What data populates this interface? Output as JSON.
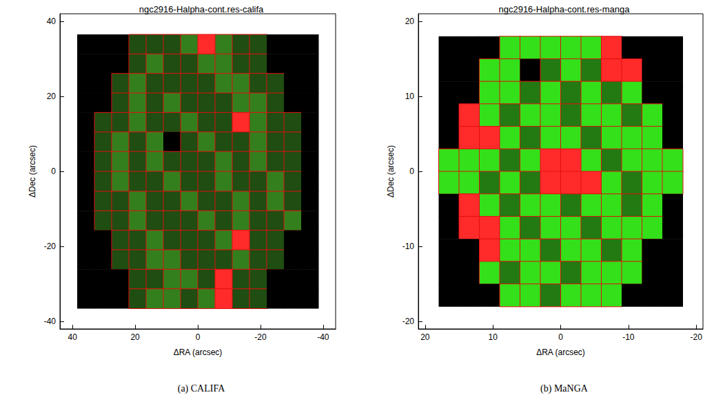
{
  "chart_data": [
    {
      "type": "heatmap",
      "title": "ngc2916-Halpha-cont.res-califa",
      "caption": "(a) CALIFA",
      "x_label": "ΔRA (arcsec)",
      "y_label": "ΔDec (arcsec)",
      "xlim": [
        44,
        -44
      ],
      "ylim": [
        -42,
        42
      ],
      "xticks": [
        40,
        20,
        0,
        -20,
        -40
      ],
      "yticks": [
        -40,
        -20,
        0,
        20,
        40
      ],
      "colors": [
        "#000000",
        "#1f4d12",
        "#347f1d",
        "#ff2a2a"
      ],
      "x_edges": [
        38.5,
        33,
        27.5,
        22,
        16.5,
        11,
        5.5,
        0,
        -5.5,
        -11,
        -16.5,
        -22,
        -27.5,
        -33,
        -38.5
      ],
      "y_edges": [
        36.5,
        31.3,
        26.1,
        20.9,
        15.7,
        10.5,
        5.3,
        0,
        -5.3,
        -10.5,
        -15.7,
        -20.9,
        -26.1,
        -31.3,
        -36.5
      ],
      "cells": [
        [
          0,
          0,
          0,
          1,
          1,
          1,
          2,
          3,
          2,
          1,
          1,
          0,
          0,
          0
        ],
        [
          0,
          0,
          0,
          1,
          2,
          1,
          1,
          2,
          2,
          1,
          1,
          0,
          0,
          0
        ],
        [
          0,
          0,
          1,
          2,
          1,
          1,
          1,
          1,
          2,
          2,
          1,
          1,
          0,
          0
        ],
        [
          0,
          0,
          1,
          2,
          1,
          2,
          1,
          1,
          1,
          2,
          2,
          1,
          0,
          0
        ],
        [
          0,
          1,
          1,
          2,
          1,
          1,
          2,
          1,
          1,
          3,
          2,
          1,
          1,
          0
        ],
        [
          0,
          1,
          2,
          1,
          2,
          0,
          1,
          2,
          1,
          1,
          2,
          1,
          1,
          0
        ],
        [
          0,
          1,
          2,
          1,
          2,
          1,
          1,
          1,
          2,
          1,
          2,
          1,
          1,
          0
        ],
        [
          0,
          1,
          2,
          1,
          1,
          2,
          1,
          1,
          2,
          1,
          1,
          2,
          1,
          0
        ],
        [
          0,
          1,
          1,
          2,
          1,
          1,
          2,
          1,
          1,
          2,
          1,
          2,
          1,
          0
        ],
        [
          0,
          1,
          1,
          2,
          1,
          1,
          1,
          2,
          1,
          2,
          1,
          1,
          2,
          0
        ],
        [
          0,
          0,
          1,
          1,
          2,
          1,
          1,
          1,
          2,
          3,
          1,
          1,
          0,
          0
        ],
        [
          0,
          0,
          1,
          1,
          2,
          2,
          1,
          1,
          1,
          2,
          1,
          1,
          0,
          0
        ],
        [
          0,
          0,
          0,
          1,
          1,
          2,
          2,
          1,
          3,
          1,
          1,
          0,
          0,
          0
        ],
        [
          0,
          0,
          0,
          1,
          2,
          2,
          1,
          2,
          3,
          1,
          1,
          0,
          0,
          0
        ]
      ]
    },
    {
      "type": "heatmap",
      "title": "ngc2916-Halpha-cont.res-manga",
      "caption": "(b) MaNGA",
      "x_label": "ΔRA (arcsec)",
      "y_label": "ΔDec (arcsec)",
      "xlim": [
        21,
        -21
      ],
      "ylim": [
        -21,
        21
      ],
      "xticks": [
        20,
        10,
        0,
        -10,
        -20
      ],
      "yticks": [
        -20,
        -10,
        0,
        10,
        20
      ],
      "colors": [
        "#000000",
        "#237a12",
        "#33e01a",
        "#ff2a2a"
      ],
      "x_edges": [
        18,
        15,
        12,
        9,
        6,
        3,
        0,
        -3,
        -6,
        -9,
        -12,
        -15,
        -18
      ],
      "y_edges": [
        18,
        15,
        12,
        9,
        6,
        3,
        0,
        -3,
        -6,
        -9,
        -12,
        -15,
        -18
      ],
      "cells": [
        [
          0,
          0,
          0,
          2,
          2,
          2,
          2,
          2,
          3,
          0,
          0,
          0
        ],
        [
          0,
          0,
          2,
          2,
          0,
          1,
          2,
          1,
          3,
          3,
          0,
          0
        ],
        [
          0,
          0,
          2,
          2,
          1,
          2,
          1,
          2,
          1,
          2,
          0,
          0
        ],
        [
          0,
          3,
          2,
          1,
          2,
          2,
          1,
          2,
          2,
          1,
          2,
          0
        ],
        [
          0,
          3,
          3,
          2,
          1,
          2,
          2,
          1,
          2,
          2,
          2,
          0
        ],
        [
          2,
          2,
          2,
          1,
          2,
          3,
          3,
          2,
          1,
          2,
          2,
          2
        ],
        [
          2,
          2,
          1,
          2,
          1,
          3,
          3,
          3,
          2,
          1,
          2,
          2
        ],
        [
          0,
          3,
          2,
          1,
          2,
          2,
          1,
          2,
          2,
          1,
          2,
          0
        ],
        [
          0,
          3,
          3,
          2,
          1,
          2,
          2,
          1,
          2,
          2,
          2,
          0
        ],
        [
          0,
          0,
          3,
          2,
          2,
          1,
          2,
          2,
          1,
          2,
          0,
          0
        ],
        [
          0,
          0,
          2,
          1,
          2,
          2,
          1,
          2,
          2,
          2,
          0,
          0
        ],
        [
          0,
          0,
          0,
          2,
          2,
          1,
          2,
          2,
          2,
          0,
          0,
          0
        ]
      ]
    }
  ]
}
